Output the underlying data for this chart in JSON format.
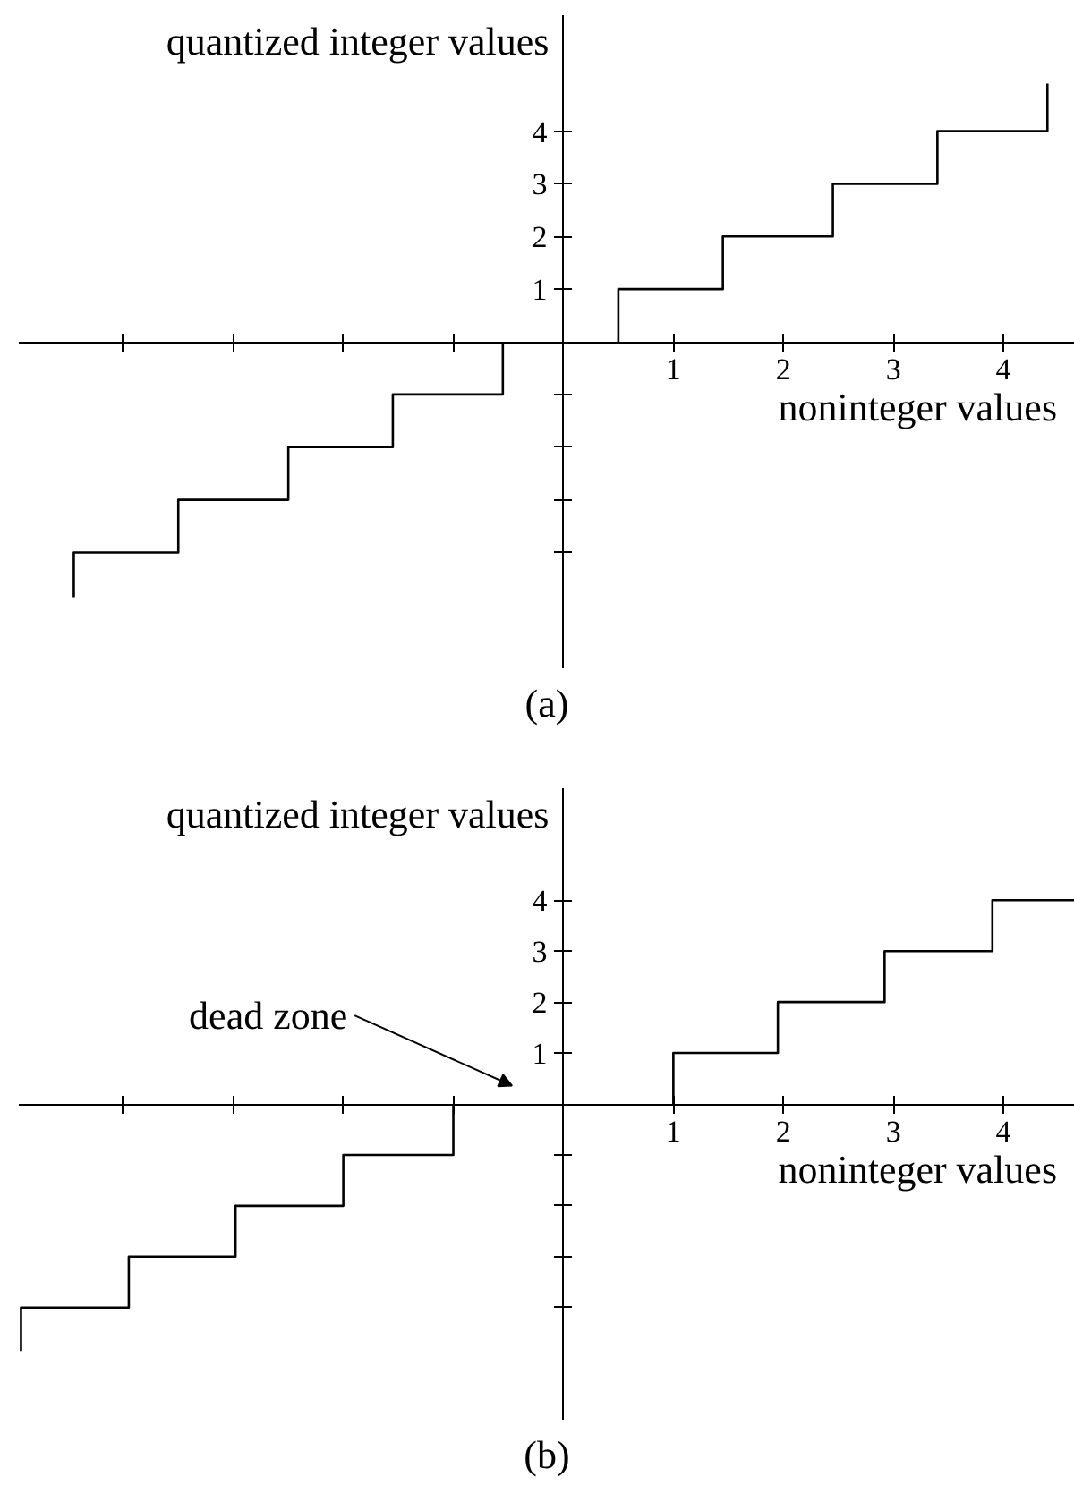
{
  "chart_data": [
    {
      "type": "line",
      "title": "(a)",
      "xlabel": "noninteger values",
      "ylabel": "quantized integer values",
      "series": [
        {
          "color": "#000000",
          "x": [
            -4.45,
            -4.45,
            -3.5,
            -3.5,
            -2.5,
            -2.5,
            -1.55,
            -1.55,
            -0.55,
            -0.55,
            null,
            0.5,
            0.5,
            1.45,
            1.45,
            2.45,
            2.45,
            3.4,
            3.4,
            4.4,
            4.4
          ],
          "values": [
            -4.85,
            -4,
            -4,
            -3,
            -3,
            -2,
            -2,
            -1,
            -1,
            0,
            null,
            0,
            1,
            1,
            2,
            2,
            3,
            3,
            4,
            4,
            4.9
          ]
        }
      ],
      "xlim": [
        -4.95,
        4.65
      ],
      "ylim": [
        -6.2,
        6.2
      ],
      "xticks": [
        {
          "value": -4,
          "label": null
        },
        {
          "value": -3,
          "label": null
        },
        {
          "value": -2,
          "label": null
        },
        {
          "value": -1,
          "label": null
        },
        1,
        2,
        3,
        4
      ],
      "yticks": [
        {
          "value": -4,
          "label": null
        },
        {
          "value": -3,
          "label": null
        },
        {
          "value": -2,
          "label": null
        },
        {
          "value": -1,
          "label": null
        },
        1,
        2,
        3,
        4
      ],
      "grid": false,
      "marker": "none",
      "line_style": "solid"
    },
    {
      "type": "line",
      "title": "(b)",
      "xlabel": "noninteger values",
      "ylabel": "quantized integer values",
      "annotations": [
        "dead zone"
      ],
      "series": [
        {
          "color": "#000000",
          "x": [
            -4.93,
            -4.93,
            -3.95,
            -3.95,
            -2.98,
            -2.98,
            -2,
            -2,
            -1,
            -1,
            null,
            1,
            1,
            1.95,
            1.95,
            2.92,
            2.92,
            3.9,
            3.9,
            4.65
          ],
          "values": [
            -4.85,
            -4,
            -4,
            -3,
            -3,
            -2,
            -2,
            -1,
            -1,
            0,
            null,
            0,
            1,
            1,
            2,
            2,
            3,
            3,
            4,
            4
          ]
        }
      ],
      "xlim": [
        -4.95,
        4.65
      ],
      "ylim": [
        -6.2,
        6.2
      ],
      "xticks": [
        {
          "value": -4,
          "label": null
        },
        {
          "value": -3,
          "label": null
        },
        {
          "value": -2,
          "label": null
        },
        {
          "value": -1,
          "label": null
        },
        1,
        2,
        3,
        4
      ],
      "yticks": [
        {
          "value": -4,
          "label": null
        },
        {
          "value": -3,
          "label": null
        },
        {
          "value": -2,
          "label": null
        },
        {
          "value": -1,
          "label": null
        },
        1,
        2,
        3,
        4
      ],
      "grid": false,
      "marker": "none",
      "line_style": "solid"
    }
  ]
}
